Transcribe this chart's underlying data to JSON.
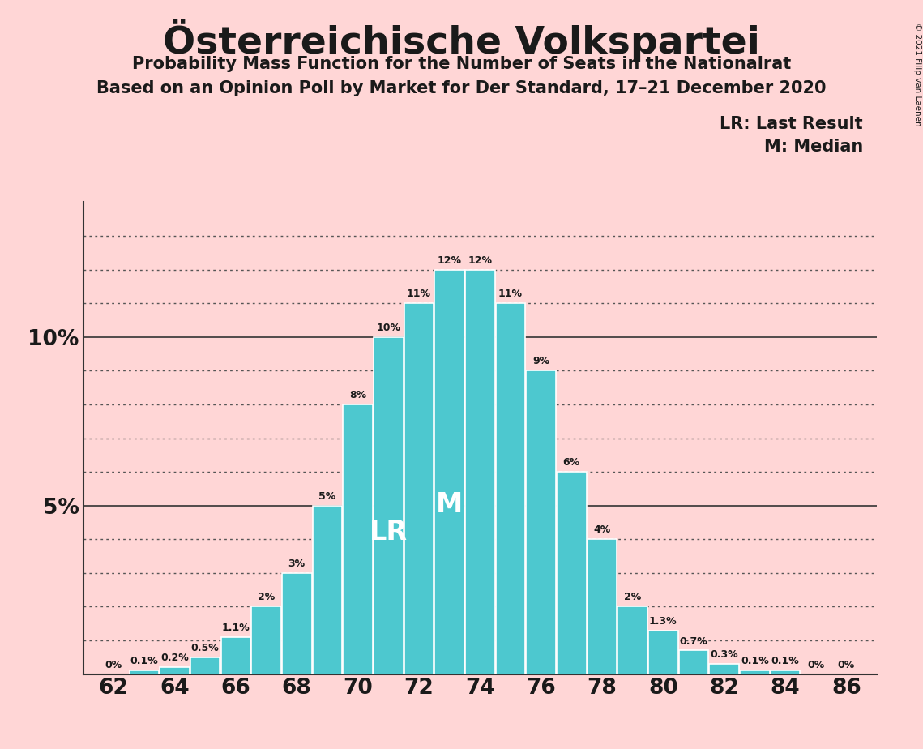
{
  "title": "Österreichische Volkspartei",
  "subtitle1": "Probability Mass Function for the Number of Seats in the Nationalrat",
  "subtitle2": "Based on an Opinion Poll by Market for Der Standard, 17–21 December 2020",
  "copyright": "© 2021 Filip van Laenen",
  "seats": [
    62,
    63,
    64,
    65,
    66,
    67,
    68,
    69,
    70,
    71,
    72,
    73,
    74,
    75,
    76,
    77,
    78,
    79,
    80,
    81,
    82,
    83,
    84,
    85,
    86
  ],
  "probabilities": [
    0.0,
    0.1,
    0.2,
    0.5,
    1.1,
    2.0,
    3.0,
    5.0,
    8.0,
    10.0,
    11.0,
    12.0,
    12.0,
    11.0,
    9.0,
    6.0,
    4.0,
    2.0,
    1.3,
    0.7,
    0.3,
    0.1,
    0.1,
    0.0,
    0.0
  ],
  "bar_color": "#4DC8CF",
  "background_color": "#FFD6D6",
  "text_color": "#1a1a1a",
  "last_result_seat": 71,
  "median_seat": 73,
  "lr_label": "LR",
  "median_label": "M",
  "legend_lr": "LR: Last Result",
  "legend_m": "M: Median",
  "xlabel_seats": [
    62,
    64,
    66,
    68,
    70,
    72,
    74,
    76,
    78,
    80,
    82,
    84,
    86
  ],
  "figsize": [
    11.39,
    9.24
  ],
  "dpi": 100,
  "ylim": [
    0,
    14.0
  ],
  "bar_width": 0.97
}
